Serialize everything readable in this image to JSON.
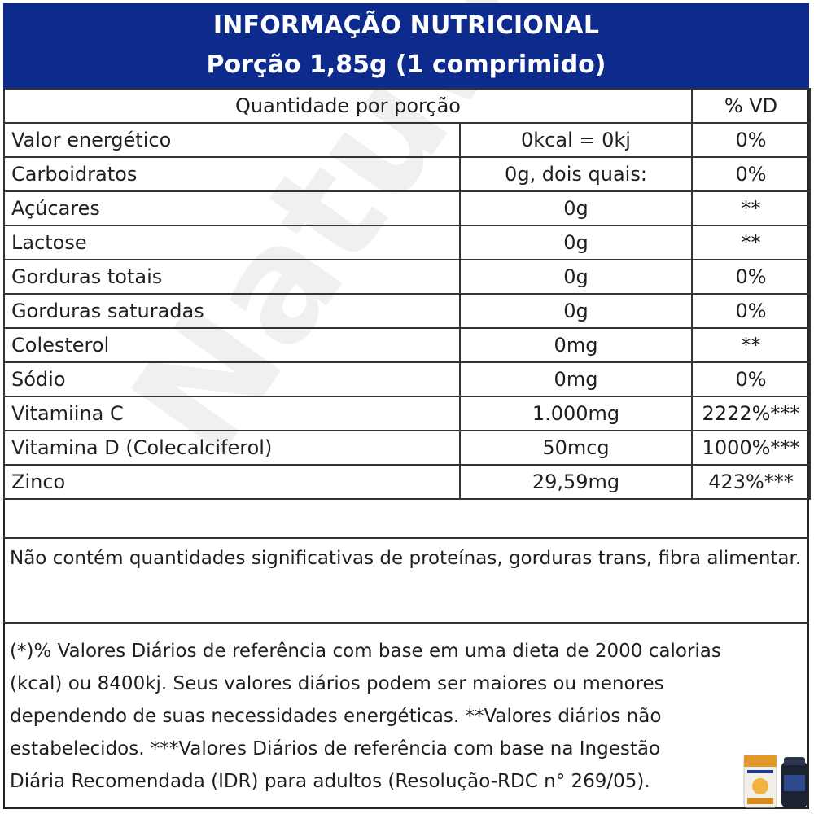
{
  "header": {
    "title": "INFORMAÇÃO NUTRICIONAL",
    "subtitle": "Porção 1,85g  (1 comprimido)"
  },
  "table": {
    "head": {
      "quantity": "Quantidade por porção",
      "vd": "% VD"
    },
    "rows": [
      {
        "name": "Valor energético",
        "amount": "0kcal = 0kj",
        "vd": "0%"
      },
      {
        "name": "Carboidratos",
        "amount": "0g, dois quais:",
        "vd": "0%"
      },
      {
        "name": "Açúcares",
        "amount": "0g",
        "vd": "**"
      },
      {
        "name": "Lactose",
        "amount": "0g",
        "vd": "**"
      },
      {
        "name": "Gorduras totais",
        "amount": "0g",
        "vd": "0%"
      },
      {
        "name": "Gorduras saturadas",
        "amount": "0g",
        "vd": "0%"
      },
      {
        "name": "Colesterol",
        "amount": "0mg",
        "vd": "**"
      },
      {
        "name": "Sódio",
        "amount": "0mg",
        "vd": "0%"
      },
      {
        "name": "Vitamiina C",
        "amount": "1.000mg",
        "vd": "2222%***"
      },
      {
        "name": "Vitamina D (Colecalciferol)",
        "amount": "50mcg",
        "vd": "1000%***"
      },
      {
        "name": "Zinco",
        "amount": "29,59mg",
        "vd": "423%***"
      }
    ]
  },
  "notes": {
    "note1": "Não contém quantidades significativas de proteínas, gorduras trans, fibra alimentar.",
    "note2_l1": "(*)% Valores Diários de referência com base em uma dieta de 2000 calorias",
    "note2_l2": "(kcal) ou 8400kj. Seus valores diários podem ser maiores ou menores",
    "note2_l3": "dependendo de suas necessidades energéticas. **Valores diários não",
    "note2_l4": "estabelecidos. ***Valores Diários de referência com base na Ingestão",
    "note2_l5": "Diária Recomendada (IDR) para adultos (Resolução-RDC n° 269/05)."
  },
  "watermark": {
    "text": "Natuweb"
  },
  "colors": {
    "header_bg": "#0d2b8c",
    "header_text": "#ffffff",
    "border": "#333333"
  }
}
